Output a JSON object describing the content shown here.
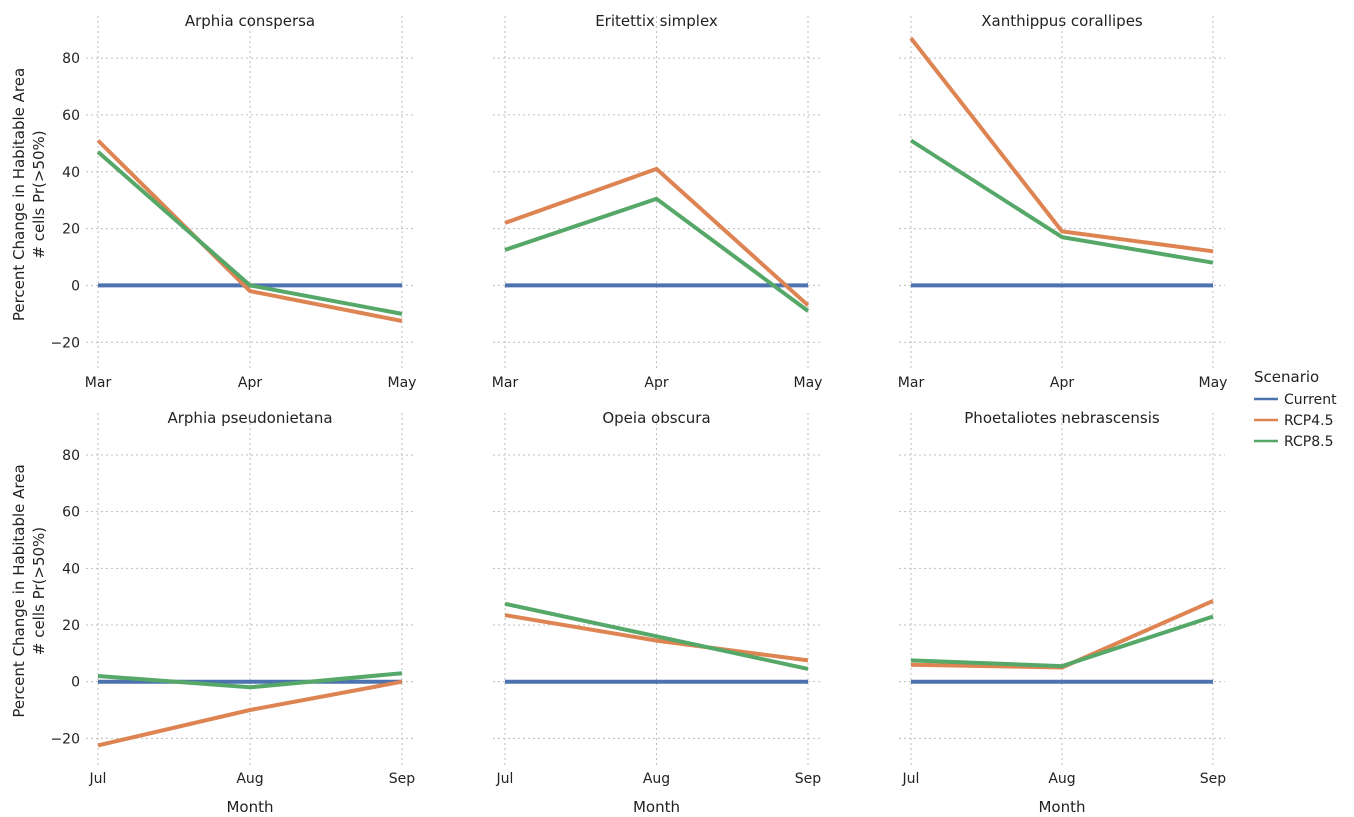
{
  "chart_data": {
    "type": "line",
    "xlabel": "Month",
    "ylabel_lines": [
      "Percent Change in Habitable Area",
      "# cells  Pr(>50%)"
    ],
    "ylim": [
      -28,
      92
    ],
    "yticks": [
      -20,
      0,
      20,
      40,
      60,
      80
    ],
    "grid": true,
    "legend": {
      "title": "Scenario",
      "placement": "right",
      "entries": [
        {
          "name": "Current",
          "color": "#4c72b0"
        },
        {
          "name": "RCP4.5",
          "color": "#dd8452"
        },
        {
          "name": "RCP8.5",
          "color": "#55a868"
        }
      ]
    },
    "panels": [
      {
        "title": "Arphia conspersa",
        "categories": [
          "Mar",
          "Apr",
          "May"
        ],
        "series": [
          {
            "name": "Current",
            "values": [
              0,
              0,
              0
            ]
          },
          {
            "name": "RCP4.5",
            "values": [
              51,
              -2,
              -12.5
            ]
          },
          {
            "name": "RCP8.5",
            "values": [
              47,
              0,
              -10
            ]
          }
        ]
      },
      {
        "title": "Eritettix simplex",
        "categories": [
          "Mar",
          "Apr",
          "May"
        ],
        "series": [
          {
            "name": "Current",
            "values": [
              0,
              0,
              0
            ]
          },
          {
            "name": "RCP4.5",
            "values": [
              22,
              41,
              -7
            ]
          },
          {
            "name": "RCP8.5",
            "values": [
              12.5,
              30.5,
              -9
            ]
          }
        ]
      },
      {
        "title": "Xanthippus corallipes",
        "categories": [
          "Mar",
          "Apr",
          "May"
        ],
        "series": [
          {
            "name": "Current",
            "values": [
              0,
              0,
              0
            ]
          },
          {
            "name": "RCP4.5",
            "values": [
              87,
              19,
              12
            ]
          },
          {
            "name": "RCP8.5",
            "values": [
              51,
              17,
              8
            ]
          }
        ]
      },
      {
        "title": "Arphia pseudonietana",
        "categories": [
          "Jul",
          "Aug",
          "Sep"
        ],
        "series": [
          {
            "name": "Current",
            "values": [
              0,
              0,
              0
            ]
          },
          {
            "name": "RCP4.5",
            "values": [
              -22.5,
              -10,
              0
            ]
          },
          {
            "name": "RCP8.5",
            "values": [
              2,
              -2,
              3
            ]
          }
        ]
      },
      {
        "title": "Opeia obscura",
        "categories": [
          "Jul",
          "Aug",
          "Sep"
        ],
        "series": [
          {
            "name": "Current",
            "values": [
              0,
              0,
              0
            ]
          },
          {
            "name": "RCP4.5",
            "values": [
              23.5,
              14.5,
              7.5
            ]
          },
          {
            "name": "RCP8.5",
            "values": [
              27.5,
              16,
              4.5
            ]
          }
        ]
      },
      {
        "title": "Phoetaliotes nebrascensis",
        "categories": [
          "Jul",
          "Aug",
          "Sep"
        ],
        "series": [
          {
            "name": "Current",
            "values": [
              0,
              0,
              0
            ]
          },
          {
            "name": "RCP4.5",
            "values": [
              6,
              5,
              28.5
            ]
          },
          {
            "name": "RCP8.5",
            "values": [
              7.5,
              5.5,
              23
            ]
          }
        ]
      }
    ]
  }
}
